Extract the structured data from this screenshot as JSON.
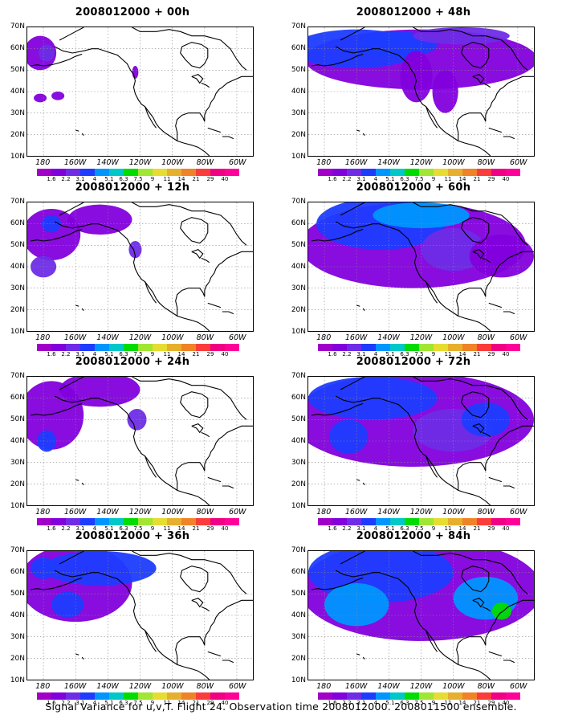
{
  "panels": [
    {
      "title": "2008012000 + 00h",
      "col": 0,
      "row": 0,
      "blobs": "p00"
    },
    {
      "title": "2008012000 + 48h",
      "col": 1,
      "row": 0,
      "blobs": "p48"
    },
    {
      "title": "2008012000 + 12h",
      "col": 0,
      "row": 1,
      "blobs": "p12"
    },
    {
      "title": "2008012000 + 60h",
      "col": 1,
      "row": 1,
      "blobs": "p60"
    },
    {
      "title": "2008012000 + 24h",
      "col": 0,
      "row": 2,
      "blobs": "p24"
    },
    {
      "title": "2008012000 + 72h",
      "col": 1,
      "row": 2,
      "blobs": "p72"
    },
    {
      "title": "2008012000 + 36h",
      "col": 0,
      "row": 3,
      "blobs": "p36"
    },
    {
      "title": "2008012000 + 84h",
      "col": 1,
      "row": 3,
      "blobs": "p84"
    }
  ],
  "lat_labels": [
    "70N",
    "60N",
    "50N",
    "40N",
    "30N",
    "20N",
    "10N"
  ],
  "lon_labels": [
    "180",
    "160W",
    "140W",
    "120W",
    "100W",
    "80W",
    "60W"
  ],
  "colorbar": {
    "colors": [
      "#a000c8",
      "#8200dc",
      "#6e2ce6",
      "#1e3cff",
      "#0096ff",
      "#00c8c8",
      "#00dc00",
      "#a0e632",
      "#e6dc32",
      "#e6af2d",
      "#f08228",
      "#fa3c3c",
      "#f00082",
      "#ff0099"
    ],
    "labels": [
      "1.6",
      "2.2",
      "3.1",
      "4",
      "5.1",
      "6.3",
      "7.5",
      "9",
      "11",
      "14",
      "21",
      "29",
      "40"
    ]
  },
  "footer": "Signal Variance for u,v,T. Flight 24. Observation time 2008012000. 2008011500 ensemble."
}
